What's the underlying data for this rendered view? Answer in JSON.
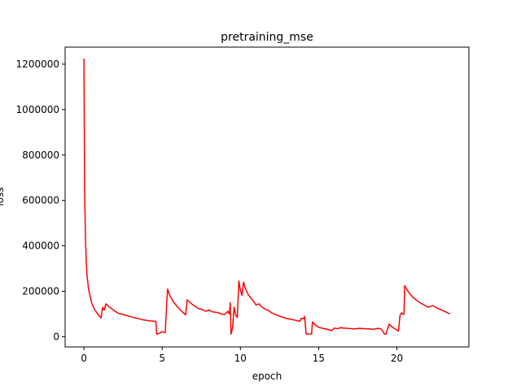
{
  "chart_data": {
    "type": "line",
    "title": "pretraining_mse",
    "xlabel": "epoch",
    "ylabel": "loss",
    "xlim": [
      -1.2,
      24.6
    ],
    "ylim": [
      -45000,
      1275000
    ],
    "xticks": [
      0,
      5,
      10,
      15,
      20
    ],
    "yticks": [
      0,
      200000,
      400000,
      600000,
      800000,
      1000000,
      1200000
    ],
    "xtick_labels": [
      "0",
      "5",
      "10",
      "15",
      "20"
    ],
    "ytick_labels": [
      "0",
      "200000",
      "400000",
      "600000",
      "800000",
      "1000000",
      "1200000"
    ],
    "grid": false,
    "series": [
      {
        "color": "#ff0000",
        "x": [
          0.0,
          0.05,
          0.1,
          0.15,
          0.2,
          0.3,
          0.4,
          0.5,
          0.6,
          0.7,
          0.8,
          0.9,
          1.0,
          1.1,
          1.2,
          1.25,
          1.3,
          1.4,
          1.5,
          1.6,
          1.8,
          2.0,
          2.2,
          2.4,
          2.6,
          2.8,
          3.0,
          3.2,
          3.5,
          3.8,
          4.0,
          4.2,
          4.5,
          4.6,
          4.65,
          4.8,
          5.0,
          5.1,
          5.2,
          5.3,
          5.35,
          5.5,
          5.7,
          6.0,
          6.3,
          6.5,
          6.6,
          6.8,
          7.0,
          7.3,
          7.6,
          7.8,
          8.0,
          8.2,
          8.5,
          8.8,
          9.0,
          9.2,
          9.3,
          9.35,
          9.4,
          9.5,
          9.6,
          9.7,
          9.8,
          9.9,
          10.0,
          10.1,
          10.2,
          10.3,
          10.4,
          10.5,
          10.7,
          10.9,
          11.0,
          11.2,
          11.3,
          11.5,
          11.8,
          12.0,
          12.3,
          12.6,
          13.0,
          13.4,
          13.8,
          13.9,
          14.0,
          14.05,
          14.1,
          14.2,
          14.5,
          14.55,
          14.6,
          14.8,
          15.0,
          15.3,
          15.6,
          15.8,
          15.85,
          16.0,
          16.2,
          16.4,
          16.6,
          16.8,
          17.0,
          17.3,
          17.6,
          18.0,
          18.3,
          18.5,
          18.8,
          19.0,
          19.2,
          19.25,
          19.3,
          19.5,
          19.8,
          20.0,
          20.05,
          20.1,
          20.2,
          20.3,
          20.4,
          20.45,
          20.5,
          20.7,
          21.0,
          21.3,
          21.6,
          22.0,
          22.3,
          22.6,
          23.0,
          23.4
        ],
        "y": [
          1225000,
          640000,
          430000,
          330000,
          270000,
          210000,
          175000,
          148000,
          132000,
          118000,
          108000,
          98000,
          90000,
          83000,
          130000,
          120000,
          118000,
          145000,
          138000,
          132000,
          122000,
          112000,
          103000,
          100000,
          96000,
          92000,
          88000,
          84000,
          79000,
          74000,
          72000,
          70000,
          68000,
          66000,
          12000,
          14000,
          22000,
          20000,
          18000,
          160000,
          210000,
          180000,
          155000,
          130000,
          108000,
          96000,
          162000,
          150000,
          138000,
          125000,
          118000,
          112000,
          118000,
          110000,
          107000,
          100000,
          98000,
          112000,
          100000,
          150000,
          12000,
          40000,
          130000,
          95000,
          85000,
          245000,
          205000,
          182000,
          240000,
          215000,
          200000,
          185000,
          168000,
          150000,
          140000,
          145000,
          136000,
          125000,
          115000,
          105000,
          96000,
          88000,
          80000,
          74000,
          68000,
          82000,
          80000,
          80000,
          90000,
          12000,
          12000,
          13000,
          65000,
          50000,
          42000,
          36000,
          32000,
          28000,
          28000,
          38000,
          35000,
          40000,
          38000,
          37000,
          36000,
          34000,
          37000,
          35000,
          34000,
          33000,
          37000,
          34000,
          12000,
          12000,
          12000,
          55000,
          38000,
          30000,
          26000,
          26000,
          95000,
          105000,
          98000,
          100000,
          225000,
          200000,
          175000,
          158000,
          145000,
          130000,
          137000,
          125000,
          113000,
          100000
        ]
      }
    ]
  }
}
